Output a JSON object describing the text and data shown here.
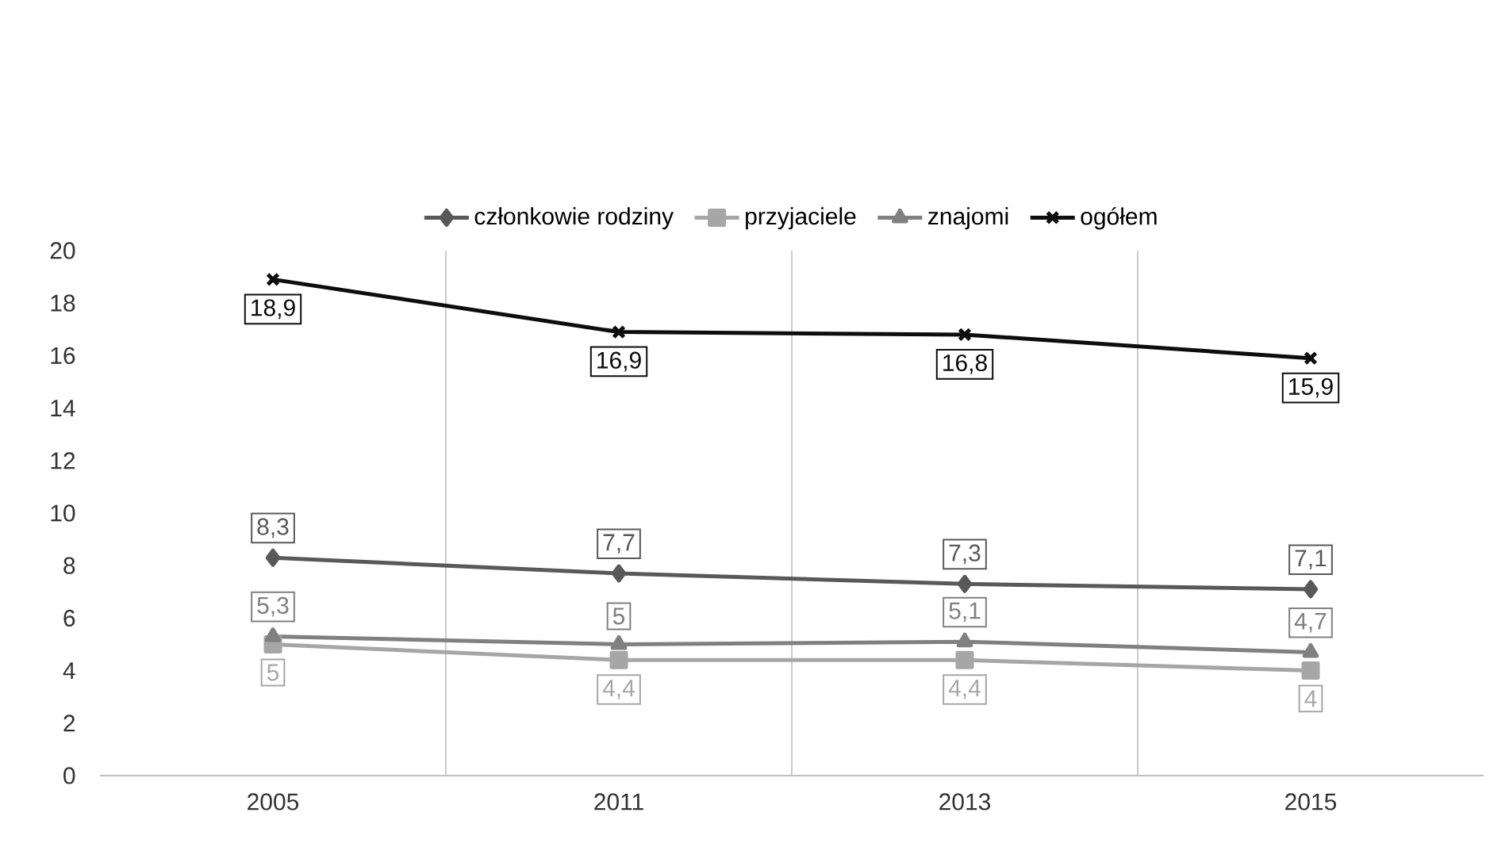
{
  "chart_data": {
    "type": "line",
    "categories": [
      "2005",
      "2011",
      "2013",
      "2015"
    ],
    "series": [
      {
        "name": "członkowie rodziny",
        "color": "#595959",
        "marker": "diamond",
        "values": [
          8.3,
          7.7,
          7.3,
          7.1
        ],
        "value_labels": [
          "8,3",
          "7,7",
          "7,3",
          "7,1"
        ]
      },
      {
        "name": "przyjaciele",
        "color": "#a6a6a6",
        "marker": "square",
        "values": [
          5,
          4.4,
          4.4,
          4
        ],
        "value_labels": [
          "5",
          "4,4",
          "4,4",
          "4"
        ]
      },
      {
        "name": "znajomi",
        "color": "#808080",
        "marker": "triangle",
        "values": [
          5.3,
          5,
          5.1,
          4.7
        ],
        "value_labels": [
          "5,3",
          "5",
          "5,1",
          "4,7"
        ]
      },
      {
        "name": "ogółem",
        "color": "#0d0d0d",
        "marker": "cross",
        "values": [
          18.9,
          16.9,
          16.8,
          15.9
        ],
        "value_labels": [
          "18,9",
          "16,9",
          "16,8",
          "15,9"
        ]
      }
    ],
    "ylim": [
      0,
      20
    ],
    "yticks": [
      0,
      2,
      4,
      6,
      8,
      10,
      12,
      14,
      16,
      18,
      20
    ],
    "grid": "x",
    "legend": "top",
    "line_style": "solid"
  }
}
